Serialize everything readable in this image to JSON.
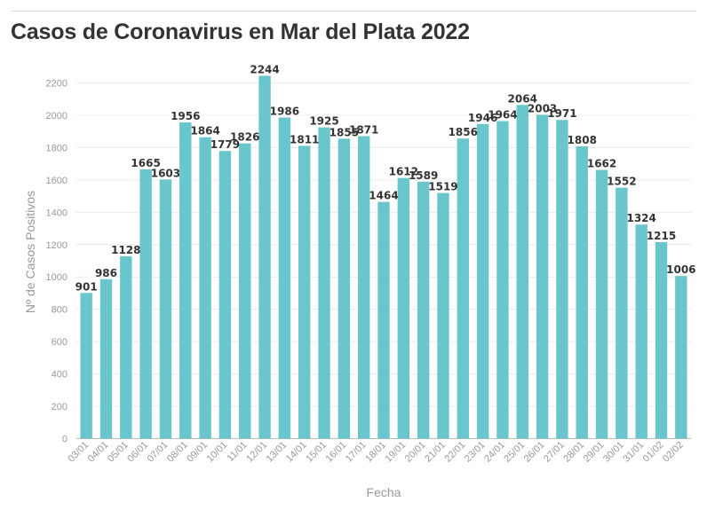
{
  "chart_data": {
    "type": "bar",
    "title": "Casos de Coronavirus en Mar del Plata 2022",
    "xlabel": "Fecha",
    "ylabel": "Nº de Casos Positivos",
    "ylim": [
      0,
      2300
    ],
    "yticks": [
      0,
      200,
      400,
      600,
      800,
      1000,
      1200,
      1400,
      1600,
      1800,
      2000,
      2200
    ],
    "grid": true,
    "bar_color": "#6ac6cd",
    "categories": [
      "03/01",
      "04/01",
      "05/01",
      "06/01",
      "07/01",
      "08/01",
      "09/01",
      "10/01",
      "11/01",
      "12/01",
      "13/01",
      "14/01",
      "15/01",
      "16/01",
      "17/01",
      "18/01",
      "19/01",
      "20/01",
      "21/01",
      "22/01",
      "23/01",
      "24/01",
      "25/01",
      "26/01",
      "27/01",
      "28/01",
      "29/01",
      "30/01",
      "31/01",
      "01/02",
      "02/02"
    ],
    "values": [
      901,
      986,
      1128,
      1665,
      1603,
      1956,
      1864,
      1779,
      1826,
      2244,
      1986,
      1811,
      1925,
      1855,
      1871,
      1464,
      1612,
      1589,
      1519,
      1856,
      1946,
      1964,
      2064,
      2003,
      1971,
      1808,
      1662,
      1552,
      1324,
      1215,
      1006
    ]
  }
}
